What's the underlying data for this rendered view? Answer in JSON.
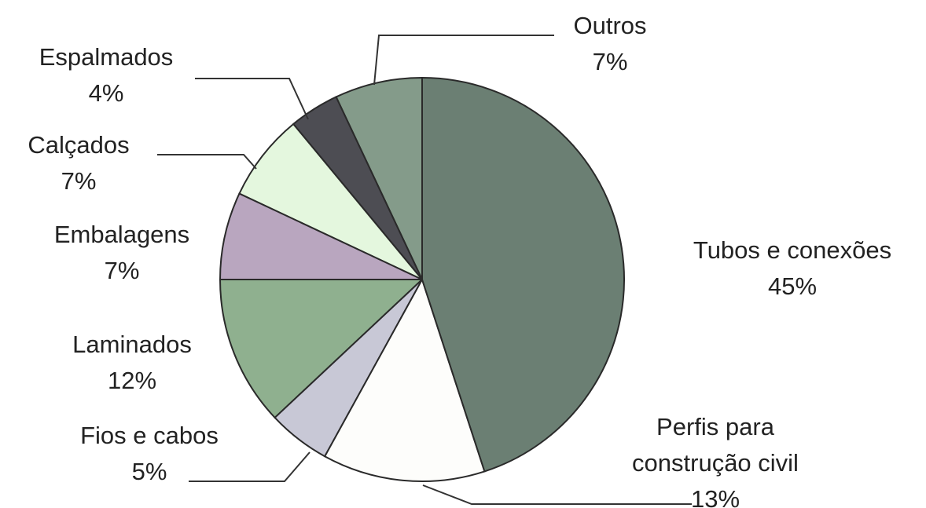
{
  "chart_data": {
    "type": "pie",
    "categories": [
      "Tubos e conexões",
      "Perfis para construção civil",
      "Fios e cabos",
      "Laminados",
      "Embalagens",
      "Calçados",
      "Espalmados",
      "Outros"
    ],
    "values": [
      45,
      13,
      5,
      12,
      7,
      7,
      4,
      7
    ],
    "value_labels": [
      "45%",
      "13%",
      "5%",
      "12%",
      "7%",
      "7%",
      "4%",
      "7%"
    ],
    "colors": [
      "#6b7f73",
      "#fdfdfb",
      "#c8c8d6",
      "#8fb08f",
      "#b9a6bf",
      "#e4f7de",
      "#4d4d53",
      "#849b8a"
    ]
  }
}
